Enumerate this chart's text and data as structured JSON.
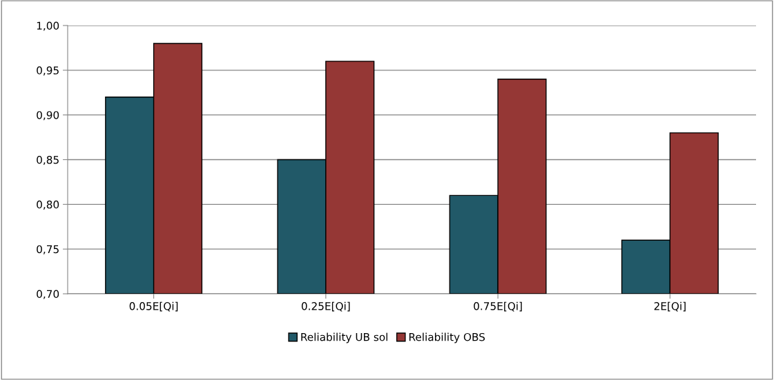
{
  "chart_data": {
    "type": "bar",
    "categories": [
      "0.05E[Qi]",
      "0.25E[Qi]",
      "0.75E[Qi]",
      "2E[Qi]"
    ],
    "series": [
      {
        "name": "Reliability UB sol",
        "color": "#215968",
        "values": [
          0.92,
          0.85,
          0.81,
          0.76
        ]
      },
      {
        "name": "Reliability OBS",
        "color": "#953735",
        "values": [
          0.98,
          0.96,
          0.94,
          0.88
        ]
      }
    ],
    "ylim": [
      0.7,
      1.0
    ],
    "yticks": [
      {
        "value": 0.7,
        "label": "0,70"
      },
      {
        "value": 0.75,
        "label": "0,75"
      },
      {
        "value": 0.8,
        "label": "0,80"
      },
      {
        "value": 0.85,
        "label": "0,85"
      },
      {
        "value": 0.9,
        "label": "0,90"
      },
      {
        "value": 0.95,
        "label": "0,95"
      },
      {
        "value": 1.0,
        "label": "1,00"
      }
    ],
    "grid": "y",
    "legend": "bottom"
  }
}
